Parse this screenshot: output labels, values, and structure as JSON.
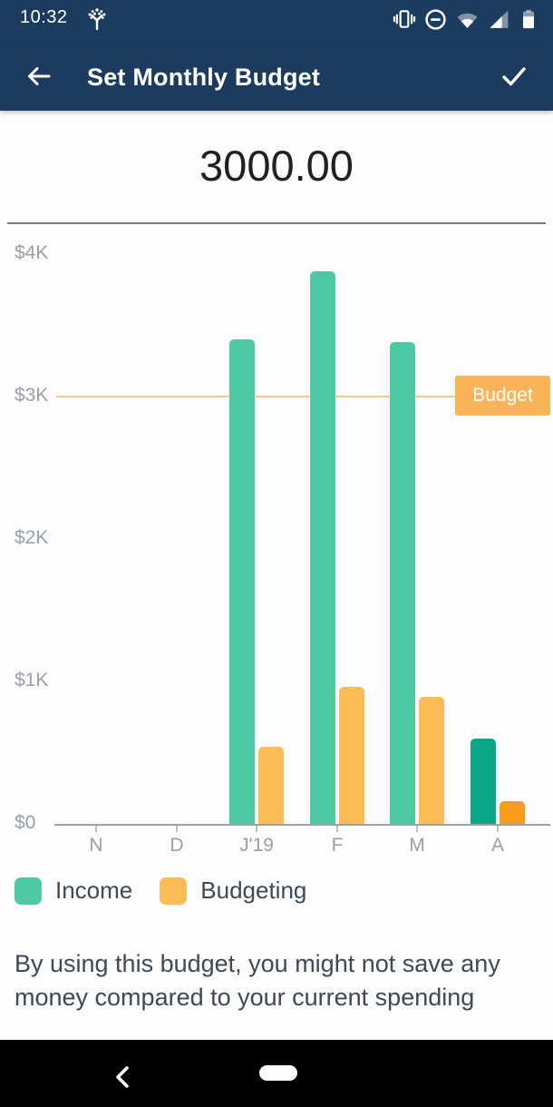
{
  "status_bar": {
    "time": "10:32",
    "icons": [
      "tree-icon",
      "vibrate-icon",
      "do-not-disturb-icon",
      "wifi-icon",
      "cell-signal-icon",
      "battery-icon"
    ]
  },
  "app_bar": {
    "title": "Set Monthly Budget",
    "back_icon": "arrow-left",
    "confirm_icon": "check"
  },
  "budget_input": {
    "value": "3000.00"
  },
  "chart_data": {
    "type": "bar",
    "title": "",
    "categories": [
      "N",
      "D",
      "J'19",
      "F",
      "M",
      "A"
    ],
    "series": [
      {
        "name": "Income",
        "color": "#4ec9a5",
        "current_month_color": "#0aa886",
        "values": [
          0,
          0,
          3400,
          3880,
          3380,
          600
        ]
      },
      {
        "name": "Budgeting",
        "color": "#fbbb57",
        "current_month_color": "#fa9c1b",
        "values": [
          0,
          0,
          540,
          960,
          890,
          160
        ]
      }
    ],
    "y_ticks": [
      {
        "label": "$4K",
        "value": 4000
      },
      {
        "label": "$3K",
        "value": 3000
      },
      {
        "label": "$2K",
        "value": 2000
      },
      {
        "label": "$1K",
        "value": 1000
      },
      {
        "label": "$0",
        "value": 0
      }
    ],
    "ylim": [
      0,
      4300
    ],
    "grid": false,
    "legend_position": "bottom",
    "budget_line": {
      "value": 3000,
      "label": "Budget",
      "line_color": "#f8ca8d",
      "badge_color": "#f9b457",
      "badge_text_color": "#ffffff"
    }
  },
  "legend": {
    "items": [
      {
        "label": "Income",
        "color": "#4ec9a5"
      },
      {
        "label": "Budgeting",
        "color": "#fbbb57"
      }
    ]
  },
  "info_text": "By using this budget, you might not save any money compared to your current spending",
  "colors": {
    "app_bar_bg": "#1c3c5f",
    "amount_text": "#212121",
    "axis_label": "#9aa0a8",
    "body_text": "#3e4956",
    "nav_bar_bg": "#000000"
  }
}
